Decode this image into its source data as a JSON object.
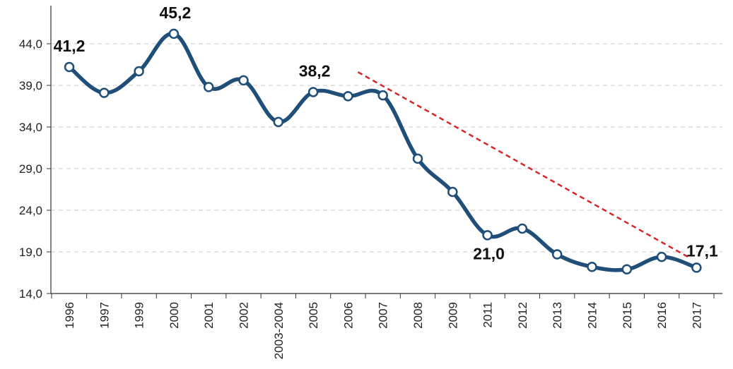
{
  "chart_data": {
    "type": "line",
    "categories": [
      "1996",
      "1997",
      "1999",
      "2000",
      "2001",
      "2002",
      "2003-2004",
      "2005",
      "2006",
      "2007",
      "2008",
      "2009",
      "2011",
      "2012",
      "2013",
      "2014",
      "2015",
      "2016",
      "2017"
    ],
    "series": [
      {
        "values": [
          41.2,
          38.1,
          40.7,
          45.2,
          38.8,
          39.6,
          34.6,
          38.2,
          37.7,
          37.8,
          30.2,
          26.2,
          21.0,
          21.8,
          18.7,
          17.2,
          16.9,
          18.4,
          17.1
        ]
      }
    ],
    "data_labels": [
      {
        "index": 0,
        "text": "41,2"
      },
      {
        "index": 3,
        "text": "45,2"
      },
      {
        "index": 7,
        "text": "38,2"
      },
      {
        "index": 12,
        "text": "21,0"
      },
      {
        "index": 18,
        "text": "17,1"
      }
    ],
    "trend_line": {
      "from_index": 8,
      "from_value": 40.6,
      "to_index": 18,
      "to_value": 18.2
    },
    "yticks": [
      "14,0",
      "19,0",
      "24,0",
      "29,0",
      "34,0",
      "39,0",
      "44,0"
    ],
    "ylim": [
      14,
      44
    ],
    "grid": true,
    "colors": {
      "line": "#1f4e79",
      "marker_fill": "#ffffff",
      "trend": "#d62728",
      "grid": "#c8c8c8",
      "axis": "#333333"
    }
  }
}
